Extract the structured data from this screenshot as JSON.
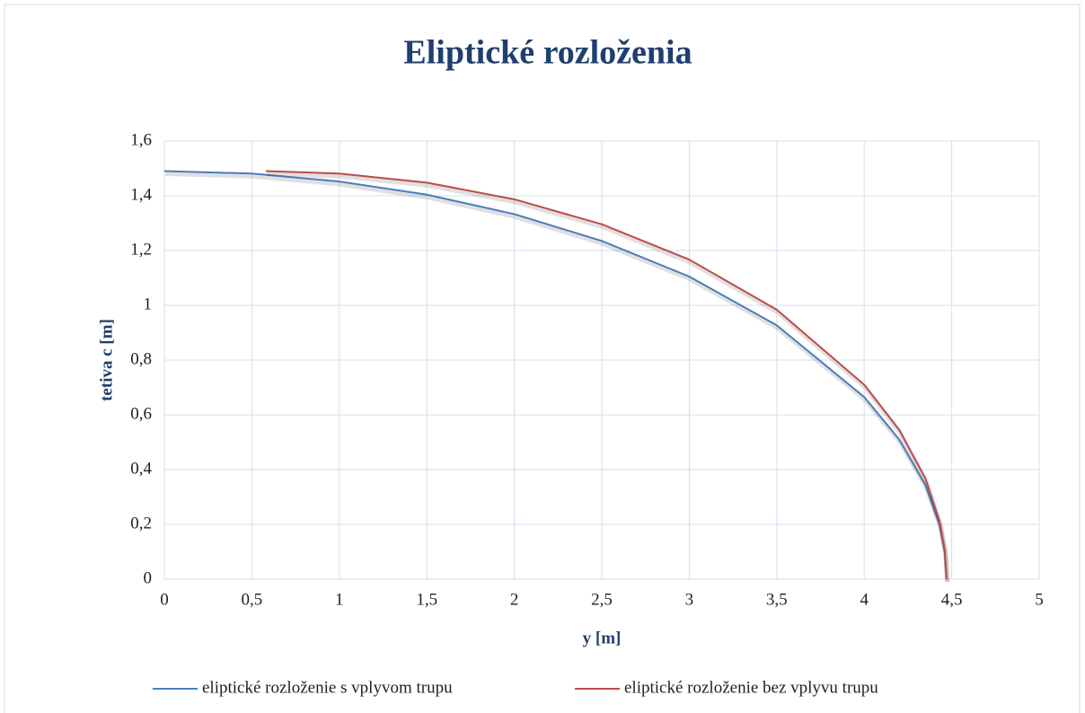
{
  "chart_data": {
    "type": "line",
    "title": "Eliptické rozloženia",
    "x_label": "y [m]",
    "y_label": "tetiva c [m]",
    "series": [
      {
        "name": "eliptické rozloženie s vplyvom trupu",
        "color": "#4a7ebb",
        "x": [
          0,
          0.5,
          1,
          1.5,
          2,
          2.5,
          3,
          3.5,
          4,
          4.2,
          4.35,
          4.43,
          4.46,
          4.47
        ],
        "values": [
          1.49,
          1.481,
          1.452,
          1.404,
          1.333,
          1.235,
          1.105,
          0.927,
          0.665,
          0.51,
          0.343,
          0.199,
          0.1,
          0
        ]
      },
      {
        "name": "eliptické rozloženie bez vplyvu trupu",
        "color": "#be4b48",
        "x": [
          0.58,
          1,
          1.5,
          2,
          2.5,
          3,
          3.5,
          4,
          4.2,
          4.35,
          4.43,
          4.46,
          4.47
        ],
        "values": [
          1.49,
          1.481,
          1.448,
          1.387,
          1.296,
          1.167,
          0.984,
          0.71,
          0.545,
          0.367,
          0.213,
          0.107,
          0
        ]
      }
    ],
    "xlim": [
      0,
      5
    ],
    "xticks": [
      0,
      {
        "value": 0.5,
        "label": "0,5"
      },
      1,
      {
        "value": 1.5,
        "label": "1,5"
      },
      2,
      {
        "value": 2.5,
        "label": "2,5"
      },
      3,
      {
        "value": 3.5,
        "label": "3,5"
      },
      4,
      {
        "value": 4.5,
        "label": "4,5"
      },
      5
    ],
    "ylim": [
      0,
      1.6
    ],
    "yticks": [
      0,
      {
        "value": 0.2,
        "label": "0,2"
      },
      {
        "value": 0.4,
        "label": "0,4"
      },
      {
        "value": 0.6,
        "label": "0,6"
      },
      {
        "value": 0.8,
        "label": "0,8"
      },
      1,
      {
        "value": 1.2,
        "label": "1,2"
      },
      {
        "value": 1.4,
        "label": "1,4"
      },
      {
        "value": 1.6,
        "label": "1,6"
      }
    ],
    "grid": true,
    "legend": "bottom"
  }
}
